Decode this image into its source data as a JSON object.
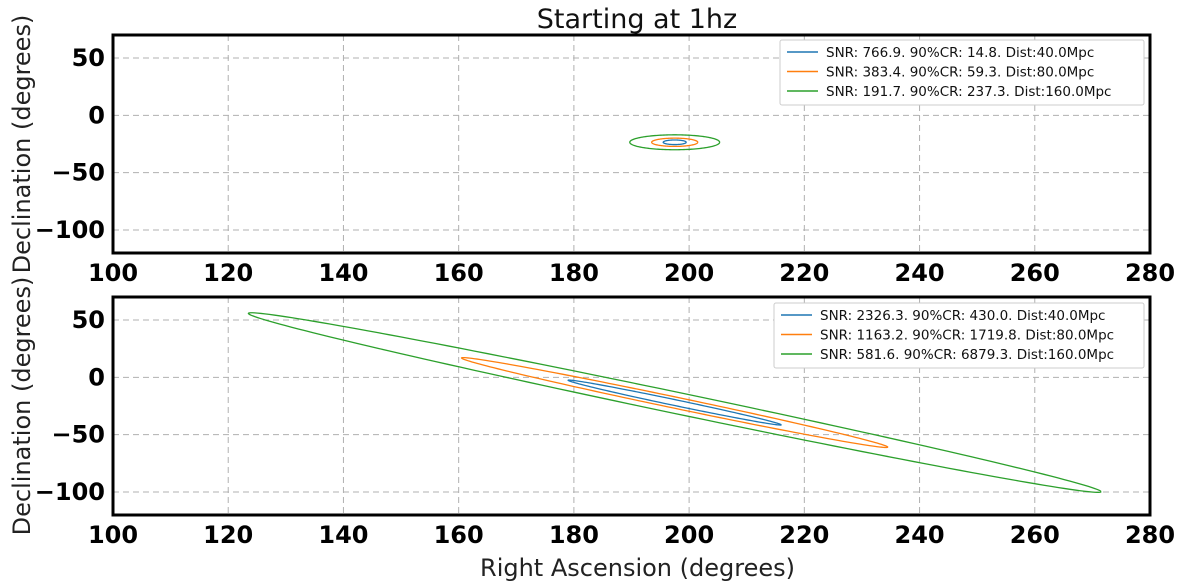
{
  "figure": {
    "title": "Starting at 1hz"
  },
  "chart_data": [
    {
      "type": "line",
      "title": "Starting at 1hz",
      "xlabel": "",
      "ylabel": "Declination (degrees)",
      "xlim": [
        100,
        280
      ],
      "ylim": [
        -120,
        70
      ],
      "xticks": [
        100,
        120,
        140,
        160,
        180,
        200,
        220,
        240,
        260,
        280
      ],
      "yticks": [
        50,
        0,
        -50,
        -100
      ],
      "ytick_labels": [
        "50",
        "0",
        "−50",
        "−100"
      ],
      "grid": true,
      "legend_position": "top-right",
      "series": [
        {
          "name": "SNR: 766.9. 90%CR: 14.8. Dist:40.0Mpc",
          "color": "#1f77b4",
          "ellipse": {
            "center_ra": 197.5,
            "center_dec": -23.5,
            "half_width_ra": 2.0,
            "half_height_dec": 2.0,
            "tilt_dec_per_ra": 0.0
          }
        },
        {
          "name": "SNR: 383.4. 90%CR: 59.3. Dist:80.0Mpc",
          "color": "#ff7f0e",
          "ellipse": {
            "center_ra": 197.5,
            "center_dec": -23.5,
            "half_width_ra": 4.0,
            "half_height_dec": 3.6,
            "tilt_dec_per_ra": 0.0
          }
        },
        {
          "name": "SNR: 191.7. 90%CR: 237.3. Dist:160.0Mpc",
          "color": "#2ca02c",
          "ellipse": {
            "center_ra": 197.5,
            "center_dec": -23.5,
            "half_width_ra": 7.8,
            "half_height_dec": 6.5,
            "tilt_dec_per_ra": 0.0
          }
        }
      ]
    },
    {
      "type": "line",
      "title": "",
      "xlabel": "Right Ascension (degrees)",
      "ylabel": "Declination (degrees)",
      "xlim": [
        100,
        280
      ],
      "ylim": [
        -120,
        70
      ],
      "xticks": [
        100,
        120,
        140,
        160,
        180,
        200,
        220,
        240,
        260,
        280
      ],
      "yticks": [
        50,
        0,
        -50,
        -100
      ],
      "ytick_labels": [
        "50",
        "0",
        "−50",
        "−100"
      ],
      "grid": true,
      "legend_position": "top-right",
      "series": [
        {
          "name": "SNR: 2326.3. 90%CR: 430.0. Dist:40.0Mpc",
          "color": "#1f77b4",
          "ellipse": {
            "center_ra": 197.5,
            "center_dec": -22.0,
            "half_width_ra": 18.5,
            "half_height_dec": 2.6,
            "tilt_dec_per_ra": -1.05
          }
        },
        {
          "name": "SNR: 1163.2. 90%CR: 1719.8. Dist:80.0Mpc",
          "color": "#ff7f0e",
          "ellipse": {
            "center_ra": 197.5,
            "center_dec": -22.0,
            "half_width_ra": 37.0,
            "half_height_dec": 5.0,
            "tilt_dec_per_ra": -1.05
          }
        },
        {
          "name": "SNR: 581.6. 90%CR: 6879.3. Dist:160.0Mpc",
          "color": "#2ca02c",
          "ellipse": {
            "center_ra": 197.5,
            "center_dec": -22.0,
            "half_width_ra": 74.0,
            "half_height_dec": 9.5,
            "tilt_dec_per_ra": -1.05
          }
        }
      ]
    }
  ]
}
